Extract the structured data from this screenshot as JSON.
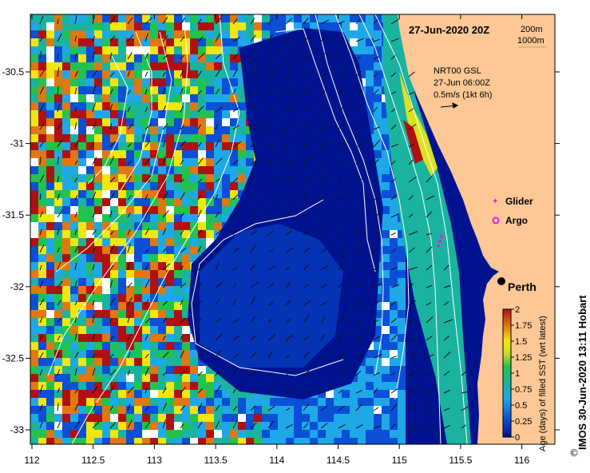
{
  "map": {
    "date_title": "27-Jun-2020 20Z",
    "depth_legend": [
      "200m",
      "1000m"
    ],
    "current_info": [
      "NRT00 GSL",
      "27-Jun 06:00Z",
      "0.5m/s (1kt 6h)"
    ],
    "legend_glider": "Glider",
    "legend_argo": "Argo",
    "city": "Perth",
    "credit": "IMOS 30-Jun-2020 13:11 Hobart",
    "copyright": "©",
    "x_ticks": [
      "112",
      "112.5",
      "113",
      "113.5",
      "114",
      "114.5",
      "115",
      "115.5",
      "116"
    ],
    "y_ticks": [
      "-30.5",
      "-31",
      "-31.5",
      "-32",
      "-32.5",
      "-33"
    ],
    "colorbar_title": "Age (days) of filled SST (wrt latest)",
    "colorbar_ticks": [
      "0",
      "0.25",
      "0.5",
      "0.75",
      "1",
      "1.25",
      "1.5",
      "1.75",
      "2"
    ],
    "colors": {
      "land": "#fdc896",
      "deep_blue": "#00138f",
      "mid_blue": "#0a4fd6",
      "light_blue": "#1fa8e8",
      "teal": "#19b3a0",
      "green": "#23c24e",
      "yellow": "#f2e611",
      "orange": "#e07811",
      "red": "#b01010",
      "contour": "#ffffff",
      "glider": "#e020e0"
    }
  }
}
